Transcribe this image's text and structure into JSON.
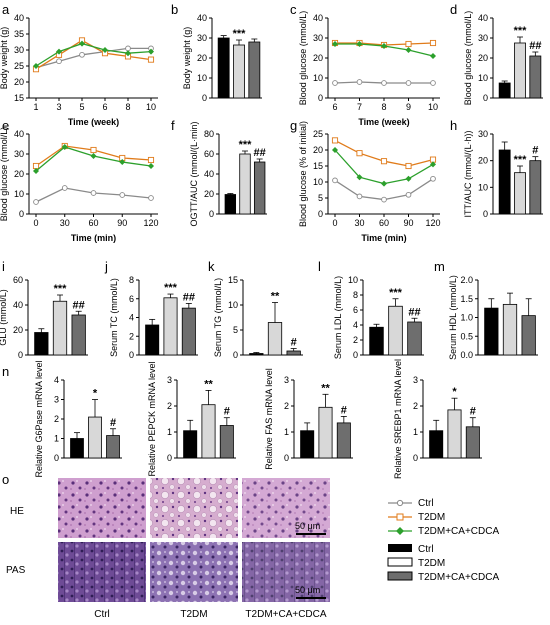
{
  "colors": {
    "ctrl": "#8a8a8a",
    "t2dm": "#e07b1a",
    "ca": "#2ca02c",
    "bar_ctrl": "#000000",
    "bar_t2dm": "#d8d8d8",
    "bar_ca": "#6e6e6e"
  },
  "legend": {
    "line": [
      "Ctrl",
      "T2DM",
      "T2DM+CA+CDCA"
    ],
    "bar": [
      "Ctrl",
      "T2DM",
      "T2DM+CA+CDCA"
    ]
  },
  "histology": {
    "label": "o",
    "rows": [
      "HE",
      "PAS"
    ],
    "cols": [
      "Ctrl",
      "T2DM",
      "T2DM+CA+CDCA"
    ],
    "scalebar": "50 μm",
    "icons": [
      "liver-he-stain-micrograph",
      "liver-pas-stain-micrograph"
    ]
  },
  "chart_data": [
    {
      "id": "a",
      "type": "line",
      "ylabel": "Body weight (g)",
      "xlabel": "Time (week)",
      "x": [
        1,
        3,
        5,
        6,
        8,
        10
      ],
      "ylim": [
        15,
        40
      ],
      "yticks": [
        15,
        20,
        25,
        30,
        35,
        40
      ],
      "series": [
        {
          "name": "Ctrl",
          "values": [
            24.5,
            26.5,
            28.5,
            29.5,
            30.5,
            30.5
          ]
        },
        {
          "name": "T2DM",
          "values": [
            24,
            28.5,
            33,
            29,
            28,
            27
          ]
        },
        {
          "name": "T2DM+CA+CDCA",
          "values": [
            25,
            29.5,
            32,
            30,
            29,
            29.5
          ]
        }
      ]
    },
    {
      "id": "b",
      "type": "bar",
      "ylabel": "Body weight (g)",
      "ylim": [
        0,
        40
      ],
      "yticks": [
        0,
        10,
        20,
        30,
        40
      ],
      "values": [
        30,
        26.5,
        28
      ],
      "errors": [
        1.2,
        2.5,
        1.5
      ],
      "sig": [
        "",
        "***",
        ""
      ]
    },
    {
      "id": "c",
      "type": "line",
      "ylabel": "Blood glucose (mmol/L)",
      "xlabel": "Time (week)",
      "x": [
        6,
        7,
        8,
        9,
        10
      ],
      "ylim": [
        0,
        40
      ],
      "yticks": [
        0,
        10,
        20,
        30,
        40
      ],
      "series": [
        {
          "name": "Ctrl",
          "values": [
            7.5,
            8,
            7.5,
            7.5,
            7.5
          ]
        },
        {
          "name": "T2DM",
          "values": [
            27.5,
            27.5,
            26.5,
            27,
            27.5
          ]
        },
        {
          "name": "T2DM+CA+CDCA",
          "values": [
            27,
            27,
            26,
            24,
            21
          ]
        }
      ]
    },
    {
      "id": "d",
      "type": "bar",
      "ylabel": "Blood glucose (mmol/L)",
      "ylim": [
        0,
        40
      ],
      "yticks": [
        0,
        10,
        20,
        30,
        40
      ],
      "values": [
        7.5,
        27.5,
        21
      ],
      "errors": [
        1,
        3,
        2
      ],
      "sig": [
        "",
        "***",
        "##"
      ]
    },
    {
      "id": "e",
      "type": "line",
      "ylabel": "Blood glucose (mmol/L)",
      "xlabel": "Time (min)",
      "x": [
        0,
        30,
        60,
        90,
        120
      ],
      "ylim": [
        0,
        40
      ],
      "yticks": [
        0,
        10,
        20,
        30,
        40
      ],
      "series": [
        {
          "name": "Ctrl",
          "values": [
            6,
            13,
            10.5,
            9.5,
            8
          ]
        },
        {
          "name": "T2DM",
          "values": [
            24,
            34,
            32,
            28,
            27
          ]
        },
        {
          "name": "T2DM+CA+CDCA",
          "values": [
            21.5,
            33.5,
            29,
            26,
            24
          ]
        }
      ]
    },
    {
      "id": "f",
      "type": "bar",
      "ylabel": "OGTT/AUC (mmol/(L·min)",
      "ylim": [
        0,
        80
      ],
      "yticks": [
        0,
        20,
        40,
        60,
        80
      ],
      "values": [
        19.5,
        60,
        52
      ],
      "errors": [
        1,
        3,
        3
      ],
      "sig": [
        "",
        "***",
        "##"
      ]
    },
    {
      "id": "g",
      "type": "line",
      "ylabel": "Blood glucose (% of initial)",
      "xlabel": "Time (min)",
      "x": [
        0,
        30,
        60,
        90,
        120
      ],
      "ylim": [
        0,
        25
      ],
      "yticks": [
        0,
        5,
        10,
        15,
        20,
        25
      ],
      "series": [
        {
          "name": "Ctrl",
          "values": [
            10.5,
            5.5,
            4.5,
            6,
            11
          ]
        },
        {
          "name": "T2DM",
          "values": [
            23,
            19,
            16.5,
            15,
            17
          ]
        },
        {
          "name": "T2DM+CA+CDCA",
          "values": [
            20,
            11.5,
            9.5,
            11,
            15.5
          ]
        }
      ]
    },
    {
      "id": "h",
      "type": "bar",
      "ylabel": "ITT/AUC (mmol/(L·h))",
      "ylim": [
        0,
        30
      ],
      "yticks": [
        0,
        10,
        20,
        30
      ],
      "values": [
        24,
        15.5,
        20
      ],
      "errors": [
        3,
        2.5,
        1.5
      ],
      "sig": [
        "",
        "***",
        "#"
      ]
    },
    {
      "id": "i",
      "type": "bar",
      "ylabel": "GLU (mmol/L)",
      "ylim": [
        0,
        60
      ],
      "yticks": [
        0,
        20,
        40,
        60
      ],
      "values": [
        18,
        43,
        32
      ],
      "errors": [
        3,
        5,
        3
      ],
      "sig": [
        "",
        "***",
        "##"
      ]
    },
    {
      "id": "j",
      "type": "bar",
      "ylabel": "Serum TC (mmol/L)",
      "ylim": [
        0,
        8
      ],
      "yticks": [
        0,
        2,
        4,
        6,
        8
      ],
      "values": [
        3.2,
        6.1,
        5
      ],
      "errors": [
        0.6,
        0.4,
        0.5
      ],
      "sig": [
        "",
        "***",
        "##"
      ]
    },
    {
      "id": "k",
      "type": "bar",
      "ylabel": "Serum TG (mmol/L)",
      "ylim": [
        0,
        15
      ],
      "yticks": [
        0,
        5,
        10,
        15
      ],
      "values": [
        0.3,
        6.5,
        0.8
      ],
      "errors": [
        0.2,
        4,
        0.5
      ],
      "sig": [
        "",
        "**",
        "#"
      ]
    },
    {
      "id": "l",
      "type": "bar",
      "ylabel": "Serum LDL (mmol/L)",
      "ylim": [
        0,
        10
      ],
      "yticks": [
        0,
        2,
        4,
        6,
        8,
        10
      ],
      "values": [
        3.7,
        6.5,
        4.4
      ],
      "errors": [
        0.4,
        1,
        0.5
      ],
      "sig": [
        "",
        "***",
        "##"
      ]
    },
    {
      "id": "m",
      "type": "bar",
      "ylabel": "Serum HDL (mmol/L)",
      "ylim": [
        0.0,
        2.0
      ],
      "yticks": [
        0.0,
        0.5,
        1.0,
        1.5,
        2.0
      ],
      "values": [
        1.25,
        1.35,
        1.05
      ],
      "errors": [
        0.25,
        0.3,
        0.45
      ],
      "sig": [
        "",
        "",
        ""
      ]
    },
    {
      "id": "n",
      "type": "bar",
      "ylabel": "Relative G6Pase mRNA level",
      "ylim": [
        0,
        4
      ],
      "yticks": [
        0,
        1,
        2,
        3,
        4
      ],
      "values": [
        1,
        2.1,
        1.15
      ],
      "errors": [
        0.3,
        0.9,
        0.35
      ],
      "sig": [
        "",
        "*",
        "#"
      ]
    },
    {
      "id": "n2",
      "type": "bar",
      "ylabel": "Relative PEPCK mRNA level",
      "ylim": [
        0,
        3
      ],
      "yticks": [
        0,
        1,
        2,
        3
      ],
      "values": [
        1.05,
        2.05,
        1.25
      ],
      "errors": [
        0.4,
        0.55,
        0.3
      ],
      "sig": [
        "",
        "**",
        "#"
      ]
    },
    {
      "id": "n3",
      "type": "bar",
      "ylabel": "Relative FAS mRNA level",
      "ylim": [
        0,
        3
      ],
      "yticks": [
        0,
        1,
        2,
        3
      ],
      "values": [
        1.05,
        1.95,
        1.35
      ],
      "errors": [
        0.3,
        0.5,
        0.25
      ],
      "sig": [
        "",
        "**",
        "#"
      ]
    },
    {
      "id": "n4",
      "type": "bar",
      "ylabel": "Relative SREBP1 mRNA level",
      "ylim": [
        0,
        3
      ],
      "yticks": [
        0,
        1,
        2,
        3
      ],
      "values": [
        1.05,
        1.85,
        1.2
      ],
      "errors": [
        0.4,
        0.45,
        0.35
      ],
      "sig": [
        "",
        "*",
        "#"
      ]
    }
  ]
}
